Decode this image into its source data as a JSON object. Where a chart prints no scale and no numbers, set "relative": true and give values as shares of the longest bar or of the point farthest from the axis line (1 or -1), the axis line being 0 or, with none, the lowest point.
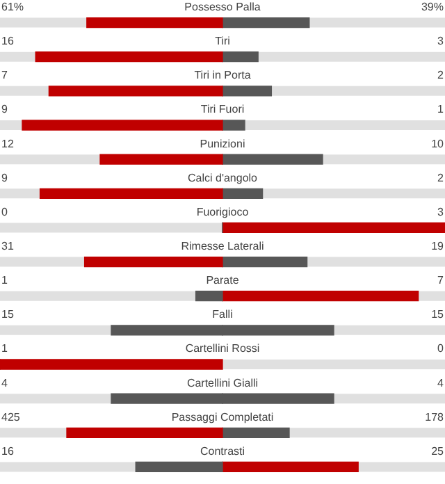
{
  "chart_data": {
    "type": "bar",
    "orientation": "horizontal",
    "relative": true,
    "stacked": true,
    "categories": [
      "Possesso Palla",
      "Tiri",
      "Tiri in Porta",
      "Tiri Fuori",
      "Punizioni",
      "Calci d'angolo",
      "Fuorigioco",
      "Rimesse Laterali",
      "Parate",
      "Falli",
      "Cartellini Rossi",
      "Cartellini Gialli",
      "Passaggi Completati",
      "Contrasti"
    ],
    "series": [
      {
        "values": [
          -0.61,
          -0.84,
          -0.78,
          -0.9,
          -0.55,
          -0.82,
          0,
          -0.62,
          -0.12,
          -0.5,
          -1,
          -0.5,
          -0.7,
          -0.39
        ],
        "colors": [
          "#c00000",
          "#c00000",
          "#c00000",
          "#c00000",
          "#c00000",
          "#c00000",
          "#575757",
          "#c00000",
          "#575757",
          "#575757",
          "#c00000",
          "#575757",
          "#c00000",
          "#575757"
        ]
      },
      {
        "values": [
          0.39,
          0.16,
          0.22,
          0.1,
          0.45,
          0.18,
          1,
          0.38,
          0.88,
          0.5,
          0,
          0.5,
          0.3,
          0.61
        ],
        "colors": [
          "#575757",
          "#575757",
          "#575757",
          "#575757",
          "#575757",
          "#575757",
          "#c00000",
          "#575757",
          "#c00000",
          "#575757",
          "#575757",
          "#575757",
          "#575757",
          "#c00000"
        ]
      }
    ],
    "annotations": [
      "61%",
      "39%",
      "16",
      "3",
      "7",
      "2",
      "9",
      "1",
      "12",
      "10",
      "9",
      "2",
      "0",
      "3",
      "31",
      "19",
      "1",
      "7",
      "15",
      "15",
      "1",
      "0",
      "4",
      "4",
      "425",
      "178",
      "16",
      "25"
    ]
  }
}
